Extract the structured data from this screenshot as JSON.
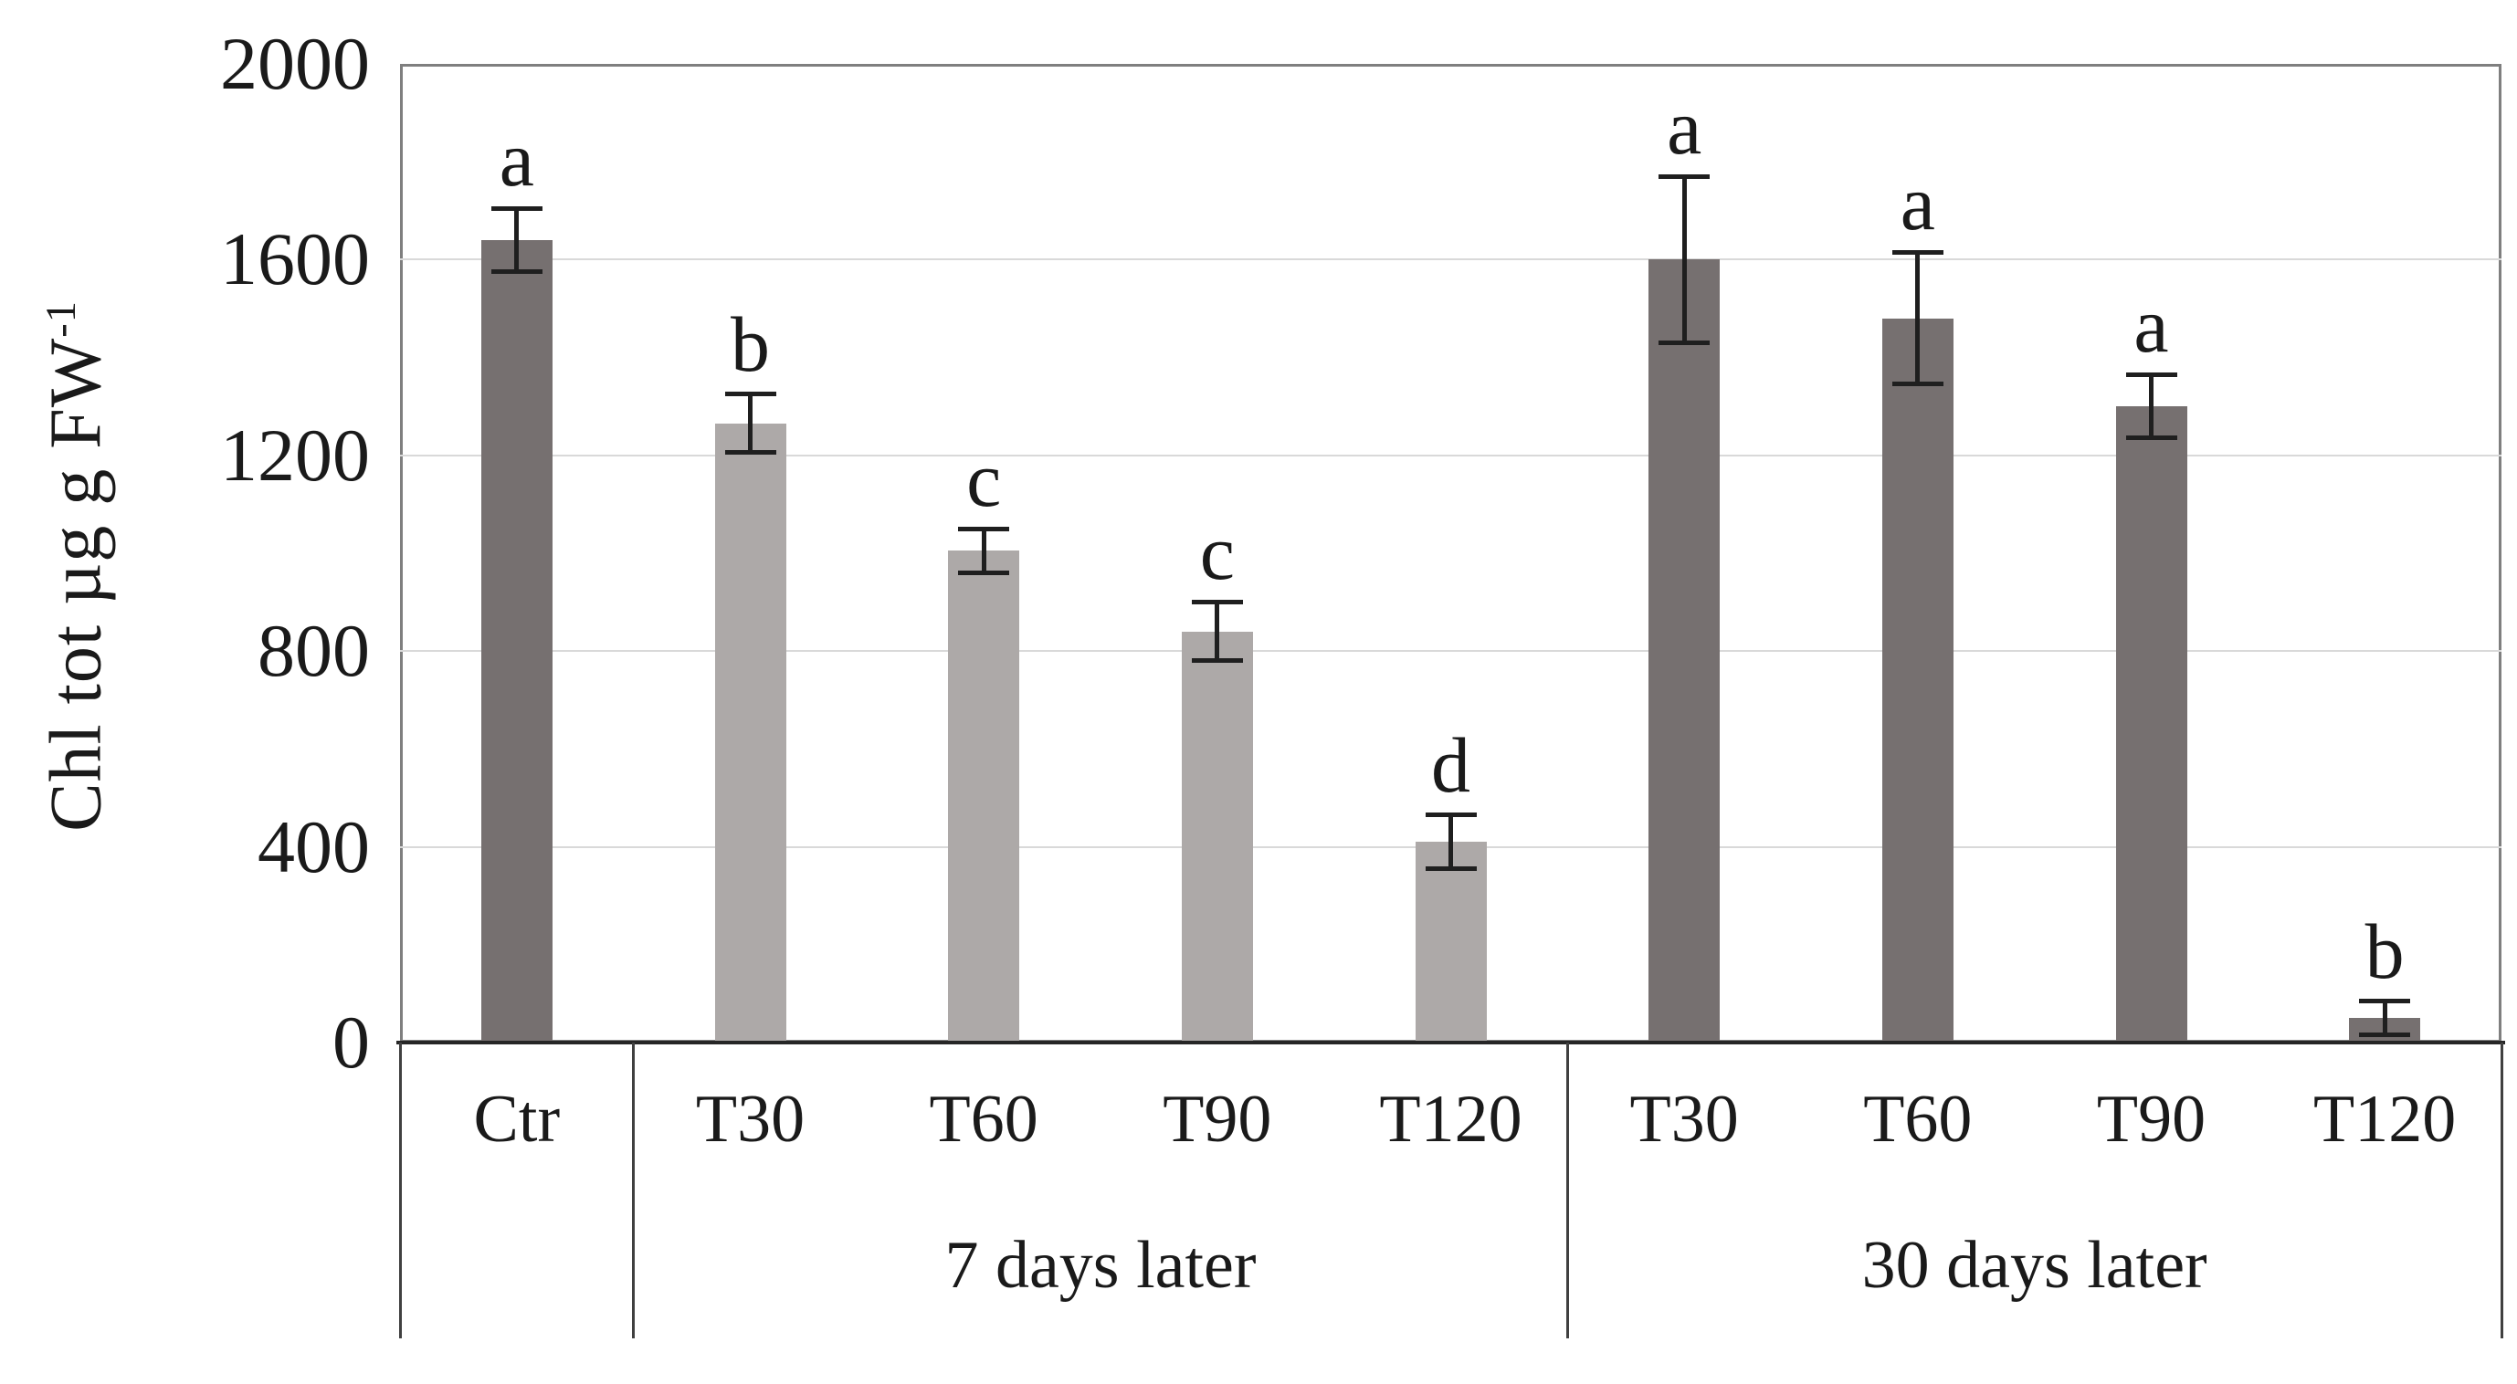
{
  "chart_data": {
    "type": "bar",
    "title": "",
    "ylabel": "Chl tot µg g FW",
    "ylabel_superscript": "-1",
    "ylim": [
      0,
      2000
    ],
    "ytick_interval": 400,
    "yticks": [
      {
        "value": 2000,
        "label": "2000"
      },
      {
        "value": 1600,
        "label": "1600"
      },
      {
        "value": 1200,
        "label": "1200"
      },
      {
        "value": 800,
        "label": "800"
      },
      {
        "value": 400,
        "label": "400"
      },
      {
        "value": 0,
        "label": "0"
      }
    ],
    "grid": "horizontal",
    "legend_position": "none",
    "groups": [
      {
        "label": "",
        "bars": [
          {
            "category": "Ctr",
            "value": 1640,
            "error": 60,
            "letter": "a",
            "shade": "dark"
          }
        ]
      },
      {
        "label": "7 days later",
        "bars": [
          {
            "category": "T30",
            "value": 1265,
            "error": 55,
            "letter": "b",
            "shade": "light"
          },
          {
            "category": "T60",
            "value": 1005,
            "error": 40,
            "letter": "c",
            "shade": "light"
          },
          {
            "category": "T90",
            "value": 840,
            "error": 55,
            "letter": "c",
            "shade": "light"
          },
          {
            "category": "T120",
            "value": 410,
            "error": 50,
            "letter": "d",
            "shade": "light"
          }
        ]
      },
      {
        "label": "30 days later",
        "bars": [
          {
            "category": "T30",
            "value": 1600,
            "error": 165,
            "letter": "a",
            "shade": "dark"
          },
          {
            "category": "T60",
            "value": 1480,
            "error": 130,
            "letter": "a",
            "shade": "dark"
          },
          {
            "category": "T90",
            "value": 1300,
            "error": 60,
            "letter": "a",
            "shade": "dark"
          },
          {
            "category": "T120",
            "value": 50,
            "error": 30,
            "letter": "b",
            "shade": "dark"
          }
        ]
      }
    ],
    "colors": {
      "dark_bar": "#767070",
      "light_bar": "#ada9a8",
      "gridline": "#d9d9d9",
      "plot_border": "#7f7f7f",
      "axis_line": "#262626",
      "error_bar": "#1f1f1f",
      "separator": "#404040",
      "text": "#1a1a1a"
    }
  }
}
